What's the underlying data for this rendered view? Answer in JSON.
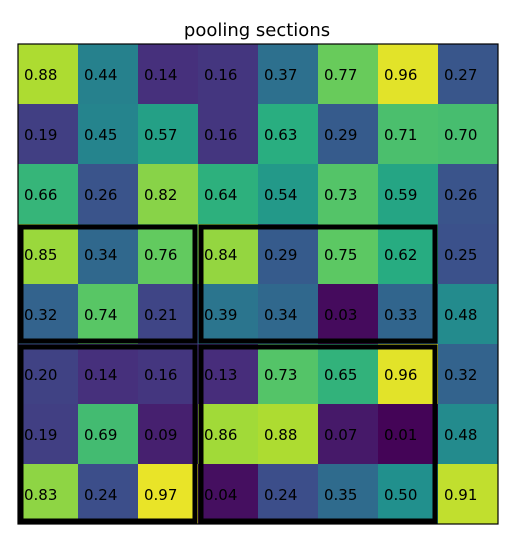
{
  "chart_data": {
    "type": "heatmap",
    "title": "pooling sections",
    "colormap": "viridis",
    "value_range": [
      0,
      1
    ],
    "rows": 8,
    "cols": 8,
    "values": [
      [
        0.88,
        0.44,
        0.14,
        0.16,
        0.37,
        0.77,
        0.96,
        0.27
      ],
      [
        0.19,
        0.45,
        0.57,
        0.16,
        0.63,
        0.29,
        0.71,
        0.7
      ],
      [
        0.66,
        0.26,
        0.82,
        0.64,
        0.54,
        0.73,
        0.59,
        0.26
      ],
      [
        0.85,
        0.34,
        0.76,
        0.84,
        0.29,
        0.75,
        0.62,
        0.25
      ],
      [
        0.32,
        0.74,
        0.21,
        0.39,
        0.34,
        0.03,
        0.33,
        0.48
      ],
      [
        0.2,
        0.14,
        0.16,
        0.13,
        0.73,
        0.65,
        0.96,
        0.32
      ],
      [
        0.19,
        0.69,
        0.09,
        0.86,
        0.88,
        0.07,
        0.01,
        0.48
      ],
      [
        0.83,
        0.24,
        0.97,
        0.04,
        0.24,
        0.35,
        0.5,
        0.91
      ]
    ],
    "pooling_sections": [
      {
        "row_start": 3,
        "row_end": 5,
        "col_start": 0,
        "col_end": 3
      },
      {
        "row_start": 3,
        "row_end": 5,
        "col_start": 3,
        "col_end": 7
      },
      {
        "row_start": 5,
        "row_end": 8,
        "col_start": 0,
        "col_end": 3
      },
      {
        "row_start": 5,
        "row_end": 8,
        "col_start": 3,
        "col_end": 7
      }
    ],
    "section_border_color": "#000000",
    "grid": false,
    "axes_ticks": false
  }
}
